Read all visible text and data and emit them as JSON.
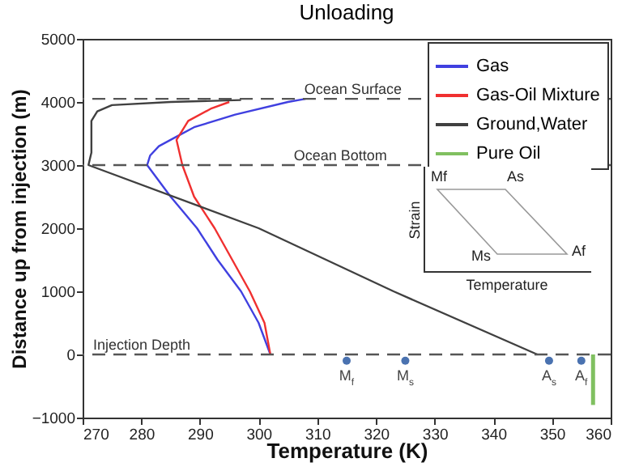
{
  "chart_data": [
    {
      "type": "line",
      "title": "Unloading",
      "xlabel": "Temperature (K)",
      "ylabel": "Distance up from injection (m)",
      "xlim": [
        270,
        360
      ],
      "xticks": [
        270,
        280,
        290,
        300,
        310,
        320,
        330,
        340,
        350,
        360
      ],
      "ylim": [
        -1000,
        5000
      ],
      "yticks": [
        -1000,
        0,
        1000,
        2000,
        3000,
        4000,
        5000
      ],
      "legend": "top right",
      "grid": false,
      "series": [
        {
          "name": "Gas",
          "color": "#4040e0",
          "x": [
            302,
            300,
            297,
            293,
            289.5,
            285,
            281,
            281.5,
            283,
            286,
            289,
            296,
            305,
            308
          ],
          "values": [
            0,
            500,
            1000,
            1500,
            2000,
            2500,
            3000,
            3150,
            3300,
            3450,
            3600,
            3800,
            4000,
            4050
          ]
        },
        {
          "name": "Gas-Oil Mixture",
          "color": "#f03030",
          "x": [
            302,
            301,
            298.5,
            295.5,
            292.5,
            289,
            287,
            286,
            288,
            292,
            295
          ],
          "values": [
            0,
            500,
            1000,
            1500,
            2000,
            2500,
            3000,
            3400,
            3700,
            3900,
            4000
          ]
        },
        {
          "name": "Ground,Water",
          "color": "#404040",
          "x": [
            347.5,
            323,
            300,
            271,
            271.5,
            271.5,
            272.5,
            275,
            285,
            297
          ],
          "values": [
            0,
            1000,
            2000,
            3000,
            3200,
            3700,
            3850,
            3950,
            4000,
            4030
          ]
        },
        {
          "name": "Pure Oil",
          "color": "#80c060",
          "x": [
            357,
            357
          ],
          "values": [
            0,
            -800
          ]
        },
        {
          "type": "scatter",
          "color": "#4a72b0",
          "marker": "circle",
          "x": [
            315,
            325,
            349.5,
            355
          ],
          "values": [
            -100,
            -100,
            -100,
            -100
          ]
        }
      ],
      "ref_lines": [
        {
          "axis": "y",
          "value": 4050,
          "label": "Ocean Surface",
          "line_style": "dashed"
        },
        {
          "axis": "y",
          "value": 3000,
          "label": "Ocean Bottom",
          "line_style": "dashed"
        },
        {
          "axis": "y",
          "value": 0,
          "label": "Injection Depth",
          "line_style": "dashed"
        }
      ],
      "annotations": [
        {
          "text": "M$_{f}$",
          "x": 315,
          "y": -100
        },
        {
          "text": "M$_{s}$",
          "x": 325,
          "y": -100
        },
        {
          "text": "A$_{s}$",
          "x": 349.5,
          "y": -100
        },
        {
          "text": "A$_{f}$",
          "x": 355,
          "y": -100
        }
      ]
    },
    {
      "type": "other",
      "xlabel": "Temperature",
      "ylabel": "Strain",
      "annotations": [
        "Mf",
        "As",
        "Af",
        "Ms"
      ]
    }
  ]
}
